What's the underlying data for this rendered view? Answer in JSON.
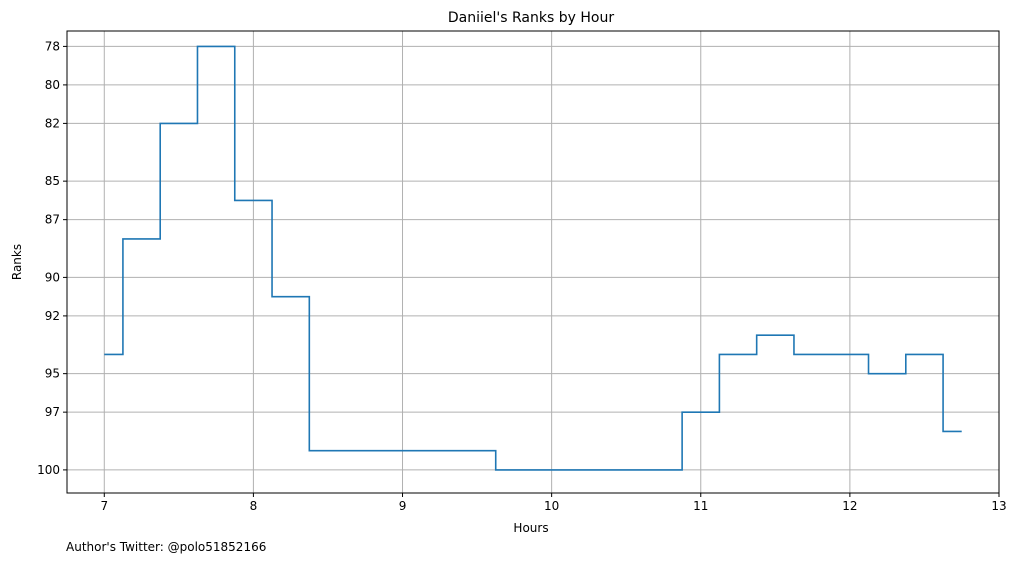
{
  "chart_data": {
    "type": "line",
    "drawstyle": "steps-mid",
    "title": "Daniiel's Ranks by Hour",
    "xlabel": "Hours",
    "ylabel": "Ranks",
    "footnote": "Author's Twitter: @polo51852166",
    "xlim": [
      6.75,
      13.0
    ],
    "ylim": [
      101.2,
      77.2
    ],
    "y_inverted": true,
    "grid": true,
    "xticks": [
      7,
      8,
      9,
      10,
      11,
      12,
      13
    ],
    "xtick_labels": [
      "7",
      "8",
      "9",
      "10",
      "11",
      "12",
      "13"
    ],
    "yticks": [
      78,
      80,
      82,
      85,
      87,
      90,
      92,
      95,
      97,
      100
    ],
    "ytick_labels": [
      "78",
      "80",
      "82",
      "85",
      "87",
      "90",
      "92",
      "95",
      "97",
      "100"
    ],
    "colors": {
      "series": "#1f77b4",
      "grid": "#b0b0b0"
    },
    "series": [
      {
        "x": [
          7.0,
          7.25,
          7.5,
          7.75,
          8.0,
          8.25,
          8.5,
          8.75,
          9.0,
          9.25,
          9.5,
          9.75,
          10.0,
          10.25,
          10.5,
          10.75,
          11.0,
          11.25,
          11.5,
          11.75,
          12.0,
          12.25,
          12.5,
          12.75
        ],
        "y": [
          94,
          88,
          82,
          78,
          86,
          91,
          99,
          99,
          99,
          99,
          99,
          100,
          100,
          100,
          100,
          100,
          97,
          94,
          93,
          94,
          94,
          95,
          94,
          98
        ]
      }
    ]
  }
}
